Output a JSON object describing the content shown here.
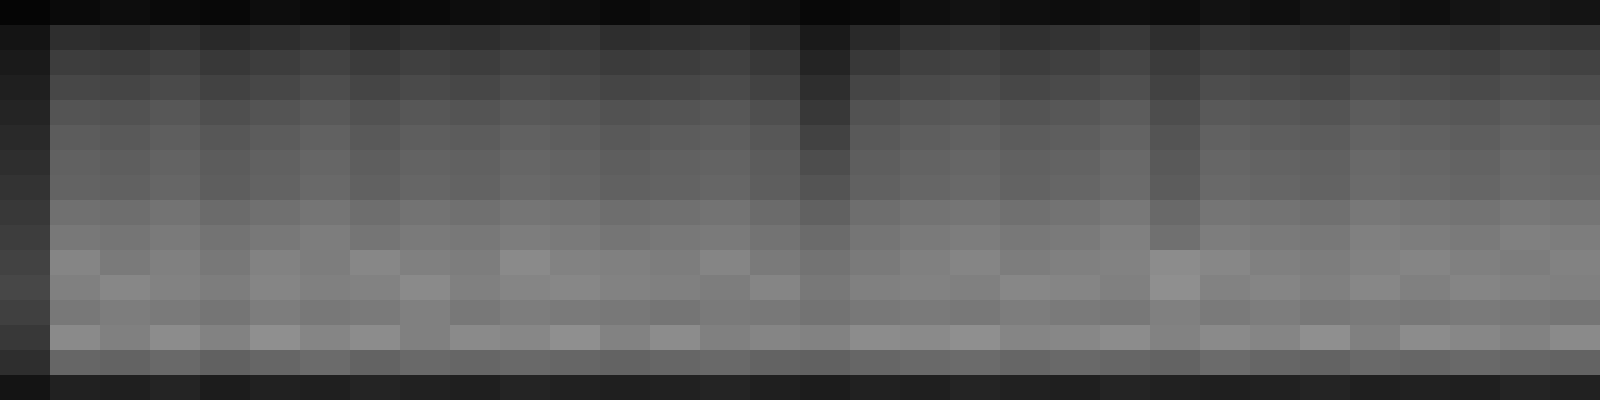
{
  "chart_data": {
    "type": "heatmap",
    "tick_labels": false,
    "zlim": [
      0,
      100
    ],
    "cells": [
      [
        2,
        4,
        5,
        4,
        3,
        5,
        4,
        3,
        4,
        5,
        6,
        5,
        4,
        5,
        6,
        5,
        3,
        4,
        6,
        7,
        6,
        5,
        6,
        5,
        7,
        6,
        8,
        7,
        6,
        8,
        9,
        8
      ],
      [
        8,
        18,
        17,
        19,
        16,
        18,
        20,
        17,
        19,
        18,
        20,
        21,
        18,
        19,
        20,
        17,
        10,
        16,
        20,
        21,
        19,
        20,
        22,
        18,
        21,
        20,
        19,
        22,
        21,
        20,
        22,
        21
      ],
      [
        10,
        24,
        23,
        25,
        22,
        24,
        26,
        23,
        25,
        24,
        26,
        25,
        23,
        24,
        25,
        22,
        14,
        22,
        25,
        26,
        24,
        25,
        27,
        23,
        26,
        25,
        24,
        27,
        26,
        25,
        27,
        26
      ],
      [
        12,
        28,
        27,
        29,
        26,
        28,
        30,
        27,
        29,
        28,
        30,
        29,
        27,
        28,
        29,
        26,
        18,
        27,
        29,
        30,
        28,
        29,
        31,
        26,
        30,
        29,
        28,
        31,
        30,
        29,
        31,
        30
      ],
      [
        14,
        33,
        32,
        34,
        31,
        33,
        35,
        32,
        34,
        33,
        35,
        34,
        32,
        33,
        34,
        31,
        22,
        32,
        34,
        35,
        33,
        34,
        36,
        30,
        35,
        34,
        33,
        36,
        35,
        34,
        36,
        35
      ],
      [
        16,
        36,
        35,
        37,
        34,
        36,
        38,
        35,
        37,
        36,
        38,
        37,
        35,
        36,
        37,
        34,
        26,
        35,
        37,
        38,
        36,
        37,
        39,
        33,
        38,
        37,
        36,
        39,
        38,
        37,
        39,
        38
      ],
      [
        18,
        38,
        37,
        39,
        36,
        38,
        40,
        37,
        39,
        38,
        40,
        39,
        37,
        38,
        39,
        36,
        30,
        37,
        39,
        40,
        38,
        39,
        41,
        35,
        40,
        39,
        38,
        41,
        40,
        39,
        41,
        40
      ],
      [
        20,
        39,
        38,
        40,
        37,
        39,
        41,
        38,
        40,
        39,
        41,
        40,
        38,
        39,
        40,
        37,
        33,
        38,
        40,
        41,
        39,
        40,
        42,
        36,
        41,
        40,
        39,
        42,
        41,
        40,
        42,
        41
      ],
      [
        22,
        44,
        43,
        45,
        42,
        44,
        46,
        43,
        45,
        44,
        46,
        45,
        43,
        44,
        45,
        42,
        38,
        43,
        45,
        46,
        44,
        45,
        47,
        41,
        46,
        45,
        44,
        47,
        46,
        45,
        47,
        46
      ],
      [
        24,
        47,
        46,
        48,
        45,
        47,
        49,
        46,
        48,
        47,
        49,
        48,
        46,
        47,
        48,
        45,
        42,
        46,
        48,
        49,
        47,
        48,
        50,
        44,
        49,
        48,
        47,
        50,
        49,
        48,
        50,
        49
      ],
      [
        26,
        52,
        48,
        50,
        47,
        51,
        49,
        53,
        50,
        49,
        54,
        51,
        50,
        49,
        52,
        48,
        45,
        48,
        50,
        52,
        49,
        50,
        51,
        55,
        53,
        50,
        49,
        51,
        52,
        50,
        49,
        51
      ],
      [
        28,
        50,
        53,
        51,
        49,
        52,
        50,
        51,
        54,
        50,
        52,
        53,
        51,
        50,
        49,
        52,
        47,
        50,
        51,
        50,
        53,
        52,
        50,
        56,
        51,
        52,
        50,
        53,
        50,
        52,
        51,
        50
      ],
      [
        25,
        47,
        49,
        48,
        46,
        49,
        47,
        48,
        50,
        47,
        49,
        48,
        47,
        46,
        48,
        47,
        45,
        47,
        48,
        47,
        49,
        48,
        47,
        50,
        48,
        49,
        47,
        48,
        47,
        48,
        47,
        46
      ],
      [
        22,
        54,
        50,
        55,
        51,
        56,
        52,
        55,
        50,
        54,
        53,
        56,
        51,
        55,
        50,
        52,
        51,
        55,
        54,
        56,
        52,
        53,
        55,
        51,
        54,
        52,
        56,
        50,
        55,
        53,
        51,
        54
      ],
      [
        18,
        40,
        39,
        41,
        38,
        40,
        42,
        39,
        41,
        40,
        41,
        40,
        39,
        40,
        41,
        39,
        38,
        40,
        41,
        42,
        40,
        41,
        40,
        39,
        42,
        40,
        39,
        41,
        40,
        41,
        40,
        39
      ],
      [
        8,
        13,
        12,
        14,
        11,
        13,
        12,
        14,
        13,
        12,
        14,
        13,
        12,
        13,
        14,
        12,
        11,
        13,
        12,
        14,
        13,
        12,
        14,
        13,
        12,
        13,
        14,
        12,
        13,
        12,
        14,
        13
      ]
    ]
  }
}
